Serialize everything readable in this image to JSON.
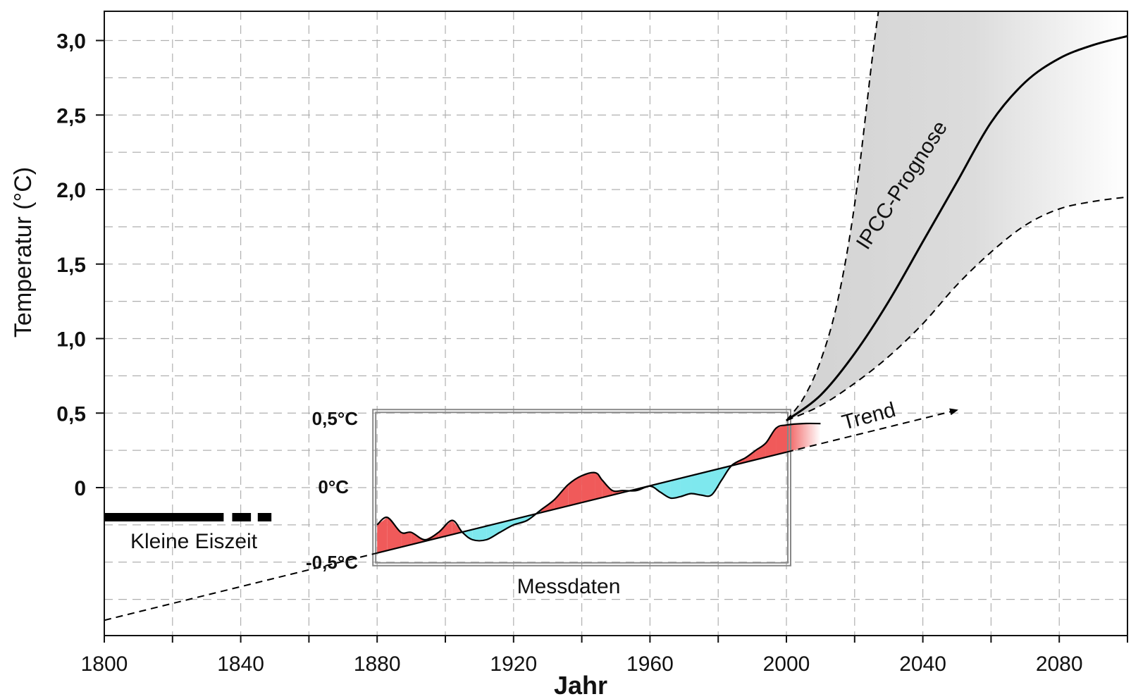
{
  "chart_data": {
    "type": "line",
    "xlabel": "Jahr",
    "ylabel": "Temperatur (°C)",
    "xlim": [
      1800,
      2100
    ],
    "ylim": [
      -1.0,
      3.2
    ],
    "x_ticks": [
      1800,
      1840,
      1880,
      1920,
      1960,
      2000,
      2040,
      2080
    ],
    "y_ticks": [
      "0",
      "0,5",
      "1,0",
      "1,5",
      "2,0",
      "2,5",
      "3,0"
    ],
    "y_tick_values": [
      0,
      0.5,
      1.0,
      1.5,
      2.0,
      2.5,
      3.0
    ],
    "grid": true,
    "annotations": {
      "little_ice_age": "Kleine Eiszeit",
      "measured": "Messdaten",
      "trend": "Trend",
      "forecast": "IPCC-Prognose"
    },
    "inset_ticks": [
      "0,5°C",
      "0°C",
      "-0,5°C"
    ],
    "little_ice_age_years": [
      1800,
      1849
    ],
    "series": [
      {
        "name": "Trend",
        "style": "dashed",
        "x": [
          1800,
          2050
        ],
        "y": [
          -0.89,
          0.52
        ]
      },
      {
        "name": "IPCC-Prognose",
        "style": "solid",
        "x": [
          2000,
          2010,
          2020,
          2030,
          2040,
          2050,
          2060,
          2070,
          2080,
          2090,
          2100
        ],
        "y": [
          0.45,
          0.62,
          0.9,
          1.25,
          1.65,
          2.05,
          2.45,
          2.72,
          2.88,
          2.97,
          3.03
        ]
      },
      {
        "name": "Prognose obere Grenze",
        "style": "dashed",
        "x": [
          2000,
          2005,
          2010,
          2015,
          2020,
          2025,
          2027
        ],
        "y": [
          0.45,
          0.6,
          0.85,
          1.25,
          1.9,
          2.85,
          3.2
        ]
      },
      {
        "name": "Prognose untere Grenze",
        "style": "dashed",
        "x": [
          2000,
          2010,
          2020,
          2030,
          2040,
          2050,
          2060,
          2070,
          2080,
          2090,
          2100
        ],
        "y": [
          0.45,
          0.55,
          0.7,
          0.88,
          1.1,
          1.36,
          1.58,
          1.76,
          1.87,
          1.92,
          1.95
        ]
      },
      {
        "name": "Messdaten",
        "style": "solid",
        "x": [
          1880,
          1883,
          1887,
          1890,
          1894,
          1898,
          1902,
          1905,
          1908,
          1912,
          1916,
          1920,
          1924,
          1928,
          1932,
          1936,
          1940,
          1944,
          1946,
          1949,
          1952,
          1956,
          1960,
          1963,
          1966,
          1969,
          1972,
          1975,
          1978,
          1981,
          1984,
          1988,
          1991,
          1994,
          1997,
          2000,
          2005,
          2010
        ],
        "y": [
          -0.25,
          -0.2,
          -0.3,
          -0.3,
          -0.35,
          -0.3,
          -0.22,
          -0.3,
          -0.35,
          -0.35,
          -0.3,
          -0.25,
          -0.22,
          -0.15,
          -0.08,
          0.02,
          0.08,
          0.1,
          0.05,
          -0.02,
          -0.02,
          -0.02,
          0.01,
          -0.03,
          -0.07,
          -0.06,
          -0.04,
          -0.05,
          -0.05,
          0.05,
          0.15,
          0.2,
          0.25,
          0.3,
          0.4,
          0.42,
          0.43,
          0.43
        ]
      }
    ],
    "colors": {
      "positive_anomaly": "#f05a5a",
      "negative_anomaly": "#7ee8ee",
      "forecast_band": "#d2d2d2",
      "grid": "#b0b0b0",
      "line": "#000000"
    }
  }
}
